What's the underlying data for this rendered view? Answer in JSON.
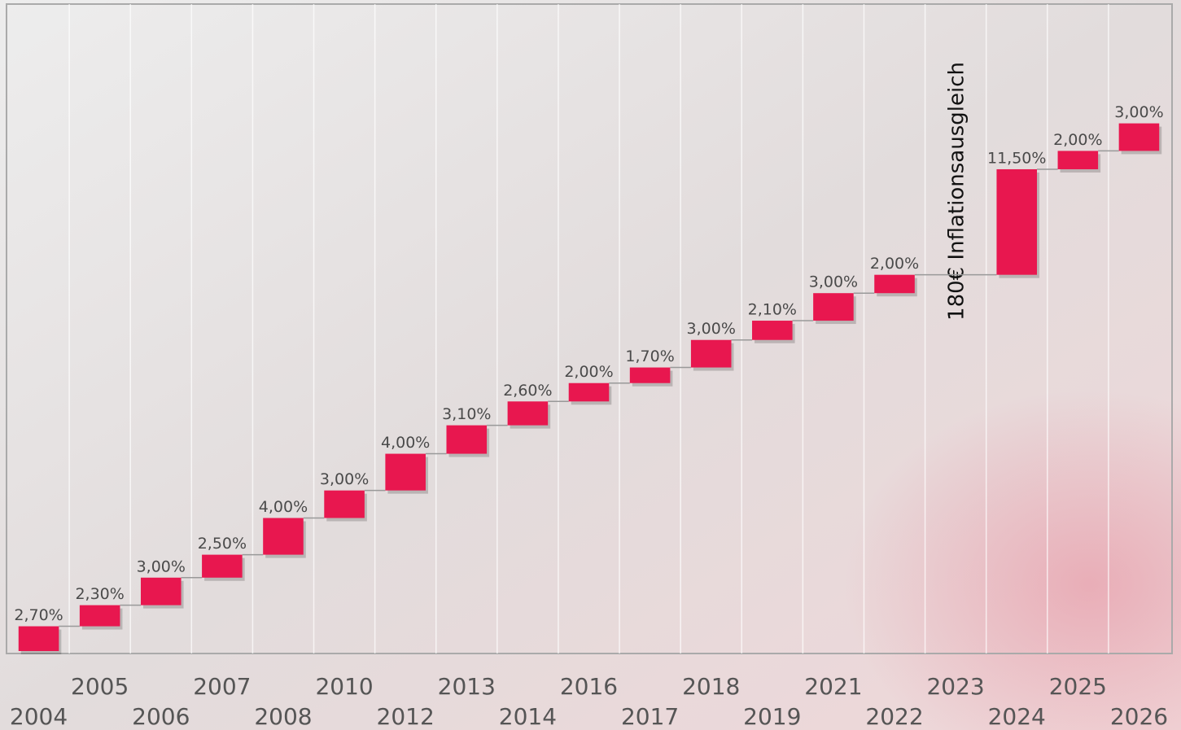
{
  "chart_data": {
    "type": "waterfall",
    "categories": [
      "2004",
      "2005",
      "2006",
      "2007",
      "2008",
      "2010",
      "2012",
      "2013",
      "2014",
      "2016",
      "2017",
      "2018",
      "2019",
      "2021",
      "2022",
      "2023",
      "2024",
      "2025",
      "2026"
    ],
    "values": [
      2.7,
      2.3,
      3.0,
      2.5,
      4.0,
      3.0,
      4.0,
      3.1,
      2.6,
      2.0,
      1.7,
      3.0,
      2.1,
      3.0,
      2.0,
      null,
      11.5,
      2.0,
      3.0
    ],
    "value_labels": [
      "2,70%",
      "2,30%",
      "3,00%",
      "2,50%",
      "4,00%",
      "3,00%",
      "4,00%",
      "3,10%",
      "2,60%",
      "2,00%",
      "1,70%",
      "3,00%",
      "2,10%",
      "3,00%",
      "2,00%",
      null,
      "11,50%",
      "2,00%",
      "3,00%"
    ],
    "annotation": "180€ Inflationsausgleich",
    "color": "#e8174f",
    "ylim": [
      0,
      70.5
    ]
  }
}
